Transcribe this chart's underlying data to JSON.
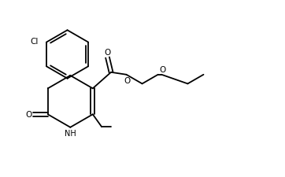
{
  "bg_color": "#ffffff",
  "line_color": "#000000",
  "figsize": [
    3.62,
    2.26
  ],
  "dpi": 100,
  "xlim": [
    0,
    9.5
  ],
  "ylim": [
    0,
    6.0
  ]
}
